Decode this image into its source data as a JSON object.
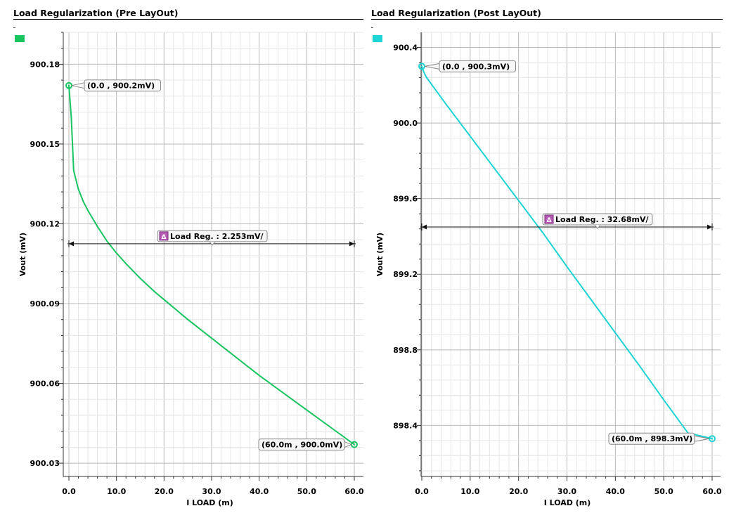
{
  "chart_data": [
    {
      "type": "line",
      "title": "Load Regularization (Pre LayOut)",
      "xlabel": "I LOAD (m)",
      "ylabel": "Vout (mV)",
      "xlim": [
        -1.0,
        60.0
      ],
      "ylim": [
        900.025,
        900.192
      ],
      "xticks": [
        "0.0",
        "10.0",
        "20.0",
        "30.0",
        "40.0",
        "50.0",
        "60.0"
      ],
      "yticks": [
        "900.03",
        "900.06",
        "900.09",
        "900.12",
        "900.15",
        "900.18"
      ],
      "grid": true,
      "legend_color": "#18c560",
      "series": [
        {
          "color": "#18c560",
          "x": [
            0,
            0.5,
            1,
            2,
            3,
            4,
            6,
            8,
            10,
            12,
            15,
            18,
            20,
            25,
            30,
            35,
            40,
            45,
            50,
            55,
            60
          ],
          "y": [
            900.172,
            900.16,
            900.14,
            900.133,
            900.1285,
            900.125,
            900.119,
            900.1135,
            900.109,
            900.105,
            900.0995,
            900.0945,
            900.0915,
            900.084,
            900.077,
            900.07,
            900.063,
            900.0565,
            900.05,
            900.0435,
            900.037
          ]
        }
      ],
      "markers": [
        {
          "x": 0,
          "y": 900.172,
          "label": "(0.0 , 900.2mV)"
        },
        {
          "x": 60,
          "y": 900.037,
          "label": "(60.0m , 900.0mV)"
        }
      ],
      "delta": {
        "label": "Load Reg. : 2.253mV/",
        "x_from": 0,
        "x_to": 60,
        "y": 900.1125,
        "icon": "delta-icon"
      }
    },
    {
      "type": "line",
      "title": "Load Regularization (Post LayOut)",
      "xlabel": "I LOAD (m)",
      "ylabel": "Vout (mV)",
      "xlim": [
        -1.0,
        60.0
      ],
      "ylim": [
        898.13,
        900.48
      ],
      "xticks": [
        "0.0",
        "10.0",
        "20.0",
        "30.0",
        "40.0",
        "50.0",
        "60.0"
      ],
      "yticks": [
        "898.4",
        "898.8",
        "899.2",
        "899.6",
        "900.0",
        "900.4"
      ],
      "grid": true,
      "legend_color": "#1fd4d4",
      "series": [
        {
          "color": "#1fd4d4",
          "x": [
            0,
            0.5,
            1,
            2,
            3,
            5,
            10,
            15,
            20,
            25,
            30,
            35,
            40,
            45,
            50,
            55,
            60
          ],
          "y": [
            900.3,
            900.265,
            900.24,
            900.205,
            900.17,
            900.1,
            899.93,
            899.76,
            899.59,
            899.42,
            899.24,
            899.065,
            898.89,
            898.715,
            898.535,
            898.36,
            898.33
          ]
        }
      ],
      "markers": [
        {
          "x": 0,
          "y": 900.3,
          "label": "(0.0 , 900.3mV)"
        },
        {
          "x": 60,
          "y": 898.33,
          "label": "(60.0m , 898.3mV)"
        }
      ],
      "delta": {
        "label": "Load Reg. : 32.68mV/",
        "x_from": 0,
        "x_to": 60,
        "y": 899.45,
        "icon": "delta-icon"
      }
    }
  ]
}
